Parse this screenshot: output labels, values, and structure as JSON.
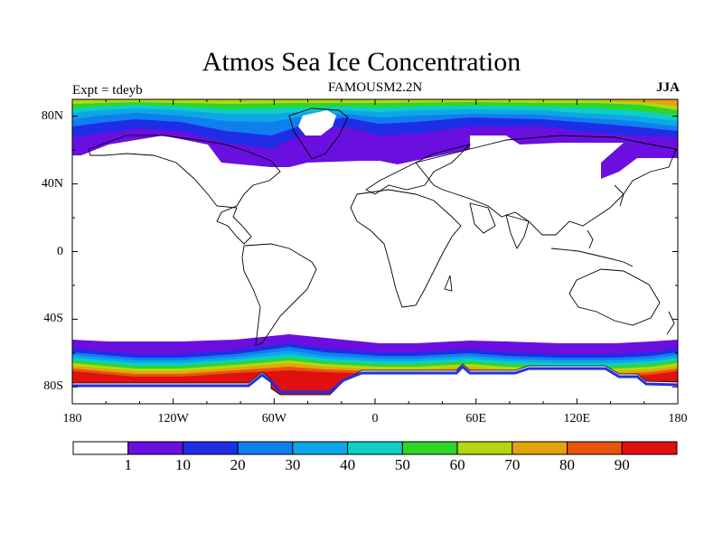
{
  "header": {
    "title": "Atmos Sea Ice Concentration",
    "subtitle": "FAMOUSM2.2N",
    "left_label": "Expt = tdeyb",
    "right_label": "JJA"
  },
  "chart_data": {
    "type": "heatmap",
    "title": "Atmos Sea Ice Concentration",
    "subtitle": "FAMOUSM2.2N",
    "x_ticks": [
      "180",
      "120W",
      "60W",
      "0",
      "60E",
      "120E",
      "180"
    ],
    "y_ticks": [
      "80N",
      "40N",
      "0",
      "40S",
      "80S"
    ],
    "xlim": [
      -180,
      180
    ],
    "ylim": [
      -90,
      90
    ],
    "colorbar": {
      "levels": [
        "1",
        "10",
        "20",
        "30",
        "40",
        "50",
        "60",
        "70",
        "80",
        "90"
      ],
      "colors": [
        "#ffffff",
        "#6a0fe0",
        "#1f2ee6",
        "#0f7ff0",
        "#0ea7e6",
        "#0ccfc8",
        "#2ed62a",
        "#b3d80f",
        "#e3a50b",
        "#e8540c",
        "#e01010"
      ]
    }
  }
}
